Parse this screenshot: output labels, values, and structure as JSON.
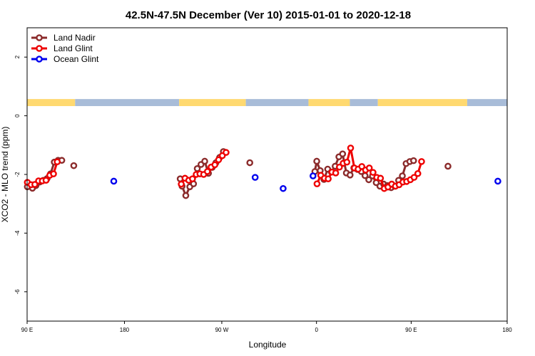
{
  "chart_data": {
    "type": "line",
    "title": "42.5N-47.5N December (Ver 10)   2015-01-01 to 2020-12-18",
    "xlabel": "Longitude",
    "ylabel": "XCO2 - MLO trend (ppm)",
    "xlim": [
      90,
      270
    ],
    "ylim": [
      -7,
      3
    ],
    "xticks": [
      {
        "value": 90,
        "label": "90 E"
      },
      {
        "value": 126.5,
        "label": "180"
      },
      {
        "value": 163,
        "label": "90 W"
      },
      {
        "value": 198.5,
        "label": "0"
      },
      {
        "value": 234,
        "label": "90 E"
      },
      {
        "value": 270,
        "label": "180"
      }
    ],
    "yticks": [
      -6,
      -4,
      -2,
      0,
      2
    ],
    "legend_position": "top-left",
    "land_bar": {
      "level": 0.45,
      "land_color": "#FFD970",
      "ocean_color": "#A8BCD8",
      "segments": [
        {
          "from": 90,
          "to": 108,
          "kind": "land"
        },
        {
          "from": 108,
          "to": 147,
          "kind": "ocean"
        },
        {
          "from": 147,
          "to": 172,
          "kind": "land"
        },
        {
          "from": 172,
          "to": 195.5,
          "kind": "ocean"
        },
        {
          "from": 195.5,
          "to": 211,
          "kind": "land"
        },
        {
          "from": 211,
          "to": 221.5,
          "kind": "ocean"
        },
        {
          "from": 221.5,
          "to": 255,
          "kind": "land"
        },
        {
          "from": 255,
          "to": 270,
          "kind": "ocean"
        }
      ]
    },
    "series": [
      {
        "name": "Land Nadir",
        "color": "#8B2B2B",
        "segments": [
          [
            [
              90.1,
              -2.42
            ],
            [
              92.0,
              -2.47
            ],
            [
              93.3,
              -2.38
            ],
            [
              94.7,
              -2.26
            ],
            [
              96.1,
              -2.2
            ],
            [
              97.5,
              -2.14
            ],
            [
              98.8,
              -1.98
            ],
            [
              100.2,
              -1.58
            ],
            [
              101.6,
              -1.52
            ],
            [
              103.0,
              -1.52
            ]
          ],
          [
            [
              147.4,
              -2.15
            ],
            [
              148.1,
              -2.4
            ],
            [
              149.5,
              -2.72
            ],
            [
              151.0,
              -2.42
            ],
            [
              152.4,
              -2.32
            ],
            [
              153.8,
              -1.8
            ],
            [
              155.2,
              -1.66
            ],
            [
              156.6,
              -1.55
            ],
            [
              158.0,
              -1.96
            ],
            [
              159.4,
              -1.76
            ],
            [
              160.8,
              -1.6
            ],
            [
              162.2,
              -1.42
            ],
            [
              163.6,
              -1.22
            ]
          ],
          [
            [
              197.9,
              -1.9
            ],
            [
              198.6,
              -1.55
            ],
            [
              199.9,
              -1.87
            ],
            [
              201.3,
              -2.17
            ],
            [
              202.7,
              -1.82
            ],
            [
              204.1,
              -1.92
            ],
            [
              205.5,
              -1.72
            ],
            [
              206.9,
              -1.4
            ],
            [
              208.3,
              -1.3
            ],
            [
              209.7,
              -1.95
            ],
            [
              211.1,
              -2.02
            ],
            [
              212.5,
              -1.78
            ],
            [
              213.9,
              -1.83
            ],
            [
              215.3,
              -1.9
            ],
            [
              216.7,
              -2.04
            ],
            [
              218.1,
              -2.18
            ],
            [
              219.5,
              -2.05
            ],
            [
              220.9,
              -2.28
            ],
            [
              222.3,
              -2.4
            ],
            [
              223.7,
              -2.33
            ],
            [
              225.1,
              -2.38
            ],
            [
              226.5,
              -2.45
            ],
            [
              227.9,
              -2.4
            ],
            [
              229.3,
              -2.2
            ],
            [
              230.7,
              -2.05
            ],
            [
              232.1,
              -1.63
            ],
            [
              233.5,
              -1.56
            ],
            [
              234.9,
              -1.53
            ]
          ]
        ],
        "isolated": [
          [
            107.5,
            -1.7
          ],
          [
            173.5,
            -1.6
          ],
          [
            247.8,
            -1.72
          ]
        ]
      },
      {
        "name": "Land Glint",
        "color": "#EE0000",
        "segments": [
          [
            [
              90.1,
              -2.27
            ],
            [
              91.5,
              -2.35
            ],
            [
              92.9,
              -2.34
            ],
            [
              94.3,
              -2.22
            ],
            [
              95.7,
              -2.22
            ],
            [
              97.1,
              -2.2
            ],
            [
              98.5,
              -2.03
            ],
            [
              99.9,
              -1.98
            ],
            [
              101.3,
              -1.57
            ]
          ],
          [
            [
              147.8,
              -2.33
            ],
            [
              149.2,
              -2.13
            ],
            [
              150.6,
              -2.2
            ],
            [
              152.0,
              -2.15
            ],
            [
              153.4,
              -2.0
            ],
            [
              154.8,
              -1.98
            ],
            [
              156.2,
              -2.0
            ],
            [
              157.6,
              -1.9
            ],
            [
              159.0,
              -1.75
            ],
            [
              160.4,
              -1.67
            ],
            [
              161.8,
              -1.5
            ],
            [
              163.2,
              -1.36
            ],
            [
              164.6,
              -1.25
            ]
          ],
          [
            [
              198.7,
              -2.32
            ],
            [
              200.1,
              -2.03
            ],
            [
              201.5,
              -2.13
            ],
            [
              202.9,
              -2.15
            ],
            [
              204.3,
              -1.92
            ],
            [
              205.7,
              -1.95
            ],
            [
              207.1,
              -1.75
            ],
            [
              208.5,
              -1.62
            ],
            [
              209.9,
              -1.58
            ],
            [
              211.3,
              -1.1
            ],
            [
              212.7,
              -1.78
            ],
            [
              214.1,
              -1.82
            ],
            [
              215.5,
              -1.73
            ],
            [
              216.9,
              -1.85
            ],
            [
              218.3,
              -1.78
            ],
            [
              219.7,
              -1.93
            ],
            [
              221.1,
              -2.1
            ],
            [
              222.5,
              -2.13
            ],
            [
              223.9,
              -2.48
            ],
            [
              225.3,
              -2.43
            ],
            [
              226.7,
              -2.33
            ],
            [
              228.1,
              -2.4
            ],
            [
              229.5,
              -2.35
            ],
            [
              230.9,
              -2.26
            ],
            [
              232.3,
              -2.24
            ],
            [
              233.7,
              -2.18
            ],
            [
              235.1,
              -2.1
            ],
            [
              236.5,
              -1.97
            ],
            [
              237.9,
              -1.56
            ]
          ]
        ],
        "isolated": []
      },
      {
        "name": "Ocean Glint",
        "color": "#0000EE",
        "segments": [],
        "isolated": [
          [
            122.5,
            -2.23
          ],
          [
            175.5,
            -2.1
          ],
          [
            186.0,
            -2.48
          ],
          [
            197.2,
            -2.05
          ],
          [
            266.5,
            -2.23
          ]
        ]
      }
    ]
  }
}
